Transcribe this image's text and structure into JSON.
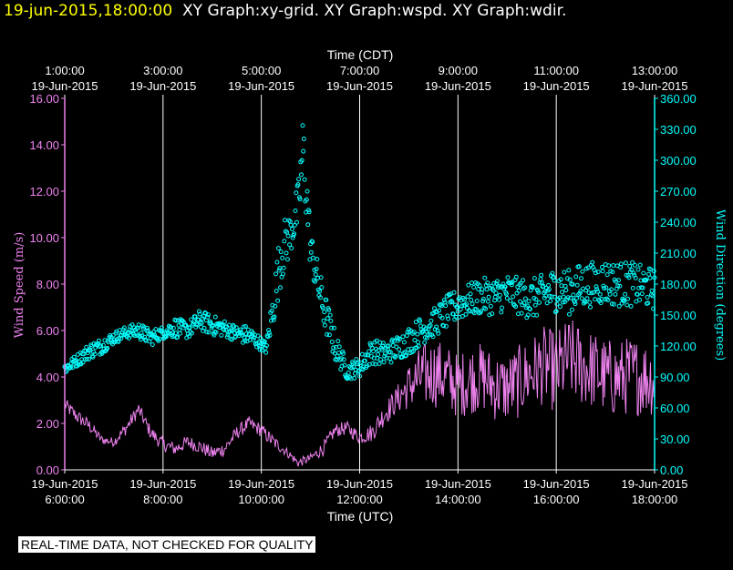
{
  "header": {
    "timestamp": "19-jun-2015,18:00:00",
    "graphs": "XY Graph:xy-grid.  XY Graph:wspd.  XY Graph:wdir."
  },
  "notice": "REAL-TIME DATA, NOT CHECKED FOR QUALITY",
  "colors": {
    "speed": "#ee82ee",
    "direction": "#00ffff",
    "grid": "#ffffff",
    "background": "#000000",
    "header_time": "#ffff00"
  },
  "chart_data": {
    "type": "line",
    "top_axis_label": "Time (CDT)",
    "bottom_axis_label": "Time (UTC)",
    "xlim_utc_hours": [
      6,
      18
    ],
    "top_ticks": [
      {
        "time": "1:00:00",
        "date": "19-Jun-2015"
      },
      {
        "time": "3:00:00",
        "date": "19-Jun-2015"
      },
      {
        "time": "5:00:00",
        "date": "19-Jun-2015"
      },
      {
        "time": "7:00:00",
        "date": "19-Jun-2015"
      },
      {
        "time": "9:00:00",
        "date": "19-Jun-2015"
      },
      {
        "time": "11:00:00",
        "date": "19-Jun-2015"
      },
      {
        "time": "13:00:00",
        "date": "19-Jun-2015"
      }
    ],
    "bottom_ticks": [
      {
        "date": "19-Jun-2015",
        "time": "6:00:00"
      },
      {
        "date": "19-Jun-2015",
        "time": "8:00:00"
      },
      {
        "date": "19-Jun-2015",
        "time": "10:00:00"
      },
      {
        "date": "19-Jun-2015",
        "time": "12:00:00"
      },
      {
        "date": "19-Jun-2015",
        "time": "14:00:00"
      },
      {
        "date": "19-Jun-2015",
        "time": "16:00:00"
      },
      {
        "date": "19-Jun-2015",
        "time": "18:00:00"
      }
    ],
    "left_axis": {
      "label": "Wind Speed (m/s)",
      "ylim": [
        0,
        16
      ],
      "ticks": [
        "0.00",
        "2.00",
        "4.00",
        "6.00",
        "8.00",
        "10.00",
        "12.00",
        "14.00",
        "16.00"
      ]
    },
    "right_axis": {
      "label": "Wind Direction (degrees)",
      "ylim": [
        0,
        360
      ],
      "ticks": [
        "0.00",
        "30.00",
        "60.00",
        "90.00",
        "120.00",
        "150.00",
        "180.00",
        "210.00",
        "240.00",
        "270.00",
        "300.00",
        "330.00",
        "360.00"
      ]
    },
    "series": [
      {
        "name": "wspd",
        "type": "line",
        "axis": "left",
        "unit": "m/s",
        "x": [
          6.0,
          6.25,
          6.5,
          6.75,
          7.0,
          7.25,
          7.5,
          7.75,
          8.0,
          8.25,
          8.5,
          8.75,
          9.0,
          9.25,
          9.5,
          9.75,
          10.0,
          10.25,
          10.5,
          10.75,
          11.0,
          11.25,
          11.5,
          11.75,
          12.0,
          12.25,
          12.5,
          12.75,
          13.0,
          13.25,
          13.5,
          13.75,
          14.0,
          14.25,
          14.5,
          14.75,
          15.0,
          15.25,
          15.5,
          15.75,
          16.0,
          16.25,
          16.5,
          16.75,
          17.0,
          17.25,
          17.5,
          17.75,
          18.0
        ],
        "values": [
          2.8,
          2.3,
          1.9,
          1.3,
          1.2,
          1.8,
          2.6,
          1.6,
          1.1,
          0.9,
          1.2,
          1.0,
          0.7,
          0.9,
          1.6,
          2.0,
          1.7,
          1.2,
          0.8,
          0.3,
          0.5,
          0.9,
          1.7,
          1.8,
          1.4,
          1.6,
          2.4,
          3.0,
          3.6,
          4.0,
          4.2,
          4.0,
          3.6,
          3.9,
          4.0,
          3.6,
          3.5,
          3.8,
          4.2,
          4.5,
          4.2,
          4.8,
          4.5,
          4.3,
          4.0,
          3.9,
          4.1,
          4.0,
          3.9
        ],
        "noise_amplitude": [
          0.3,
          0.3,
          0.3,
          0.2,
          0.2,
          0.3,
          0.3,
          0.3,
          0.3,
          0.3,
          0.3,
          0.3,
          0.3,
          0.3,
          0.3,
          0.3,
          0.3,
          0.3,
          0.2,
          0.2,
          0.2,
          0.3,
          0.3,
          0.3,
          0.3,
          0.4,
          0.5,
          0.6,
          1.0,
          1.4,
          1.5,
          1.5,
          1.4,
          1.5,
          1.5,
          1.5,
          1.5,
          1.6,
          1.6,
          1.7,
          1.8,
          1.8,
          1.8,
          1.7,
          1.7,
          1.7,
          1.7,
          1.7,
          1.6
        ]
      },
      {
        "name": "wdir",
        "type": "scatter",
        "axis": "right",
        "unit": "degrees",
        "x": [
          6.0,
          6.25,
          6.5,
          6.75,
          7.0,
          7.25,
          7.5,
          7.75,
          8.0,
          8.25,
          8.5,
          8.75,
          9.0,
          9.25,
          9.5,
          9.75,
          10.0,
          10.1,
          10.25,
          10.4,
          10.6,
          10.75,
          10.85,
          11.0,
          11.25,
          11.5,
          11.75,
          12.0,
          12.25,
          12.5,
          12.75,
          13.0,
          13.25,
          13.5,
          13.75,
          14.0,
          14.25,
          14.5,
          14.75,
          15.0,
          15.25,
          15.5,
          15.75,
          16.0,
          16.25,
          16.5,
          16.75,
          17.0,
          17.25,
          17.5,
          17.75,
          18.0
        ],
        "values": [
          98,
          106,
          115,
          120,
          128,
          133,
          135,
          128,
          133,
          138,
          135,
          145,
          140,
          137,
          132,
          130,
          122,
          118,
          160,
          210,
          230,
          255,
          310,
          215,
          160,
          120,
          95,
          100,
          115,
          112,
          118,
          125,
          135,
          142,
          152,
          160,
          165,
          168,
          168,
          172,
          168,
          165,
          170,
          175,
          172,
          178,
          180,
          182,
          180,
          180,
          178,
          175
        ],
        "noise_amplitude": [
          6,
          6,
          8,
          8,
          6,
          6,
          8,
          8,
          6,
          10,
          8,
          10,
          10,
          8,
          8,
          10,
          6,
          6,
          20,
          30,
          20,
          25,
          40,
          20,
          20,
          15,
          8,
          10,
          12,
          12,
          12,
          14,
          14,
          14,
          16,
          16,
          16,
          18,
          18,
          18,
          18,
          20,
          20,
          22,
          22,
          22,
          22,
          22,
          22,
          22,
          20,
          20
        ]
      }
    ]
  }
}
